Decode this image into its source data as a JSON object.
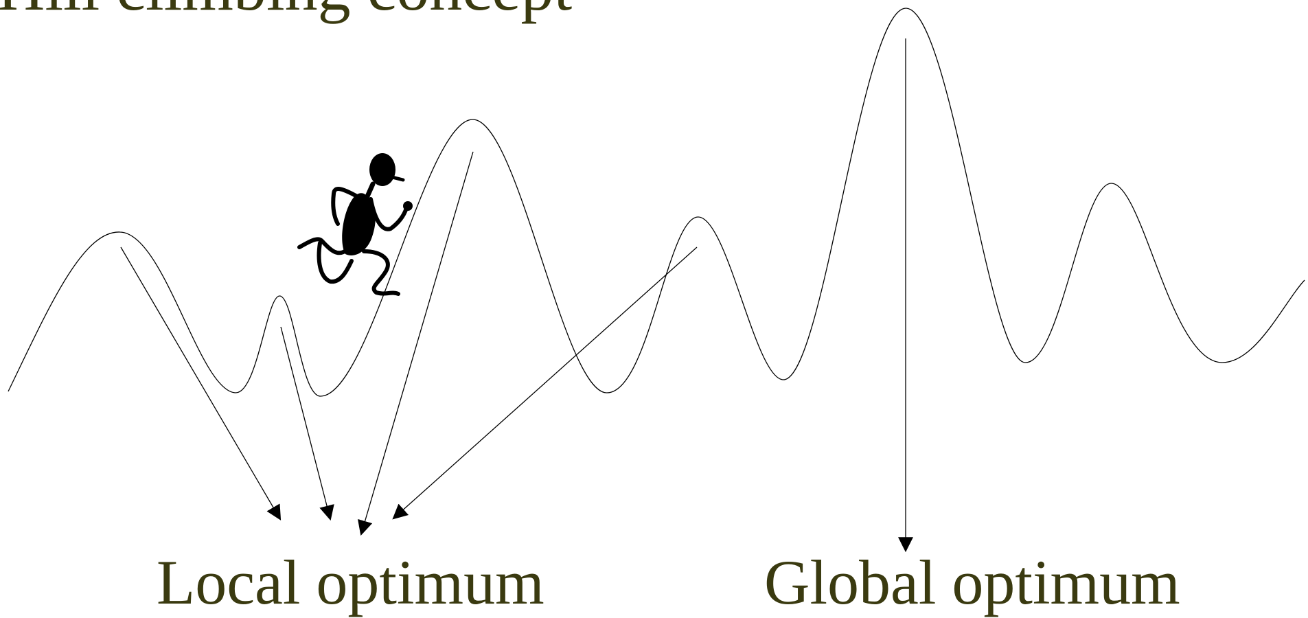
{
  "slide": {
    "title": "Hill climbing concept",
    "labels": {
      "local": "Local optimum",
      "global": "Global optimum"
    }
  },
  "colors": {
    "text": "#3a3a10",
    "line": "#000000",
    "background": "#ffffff"
  },
  "icons": {
    "climber": "running-stick-figure-icon"
  }
}
